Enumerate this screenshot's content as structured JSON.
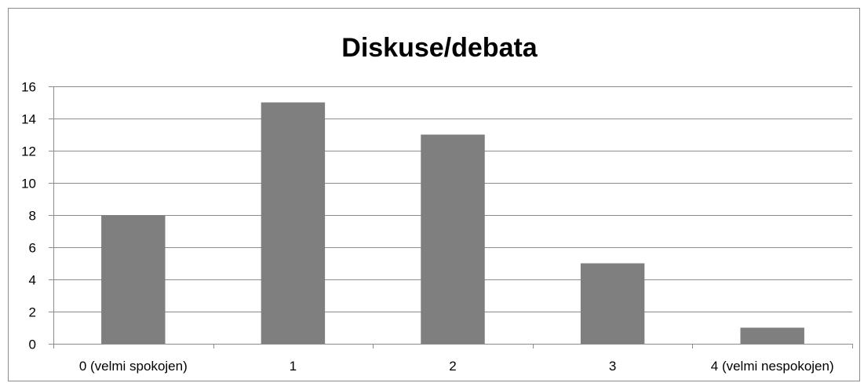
{
  "chart_data": {
    "type": "bar",
    "title": "Diskuse/debata",
    "categories": [
      "0 (velmi spokojen)",
      "1",
      "2",
      "3",
      "4 (velmi nespokojen)"
    ],
    "values": [
      8,
      15,
      13,
      5,
      1
    ],
    "ylim": [
      0,
      16
    ],
    "yticks": [
      "0",
      "2",
      "4",
      "6",
      "8",
      "10",
      "12",
      "14",
      "16"
    ],
    "xlabel": "",
    "ylabel": "",
    "grid": true,
    "legend": "none",
    "bar_color": "#7f7f7f"
  }
}
